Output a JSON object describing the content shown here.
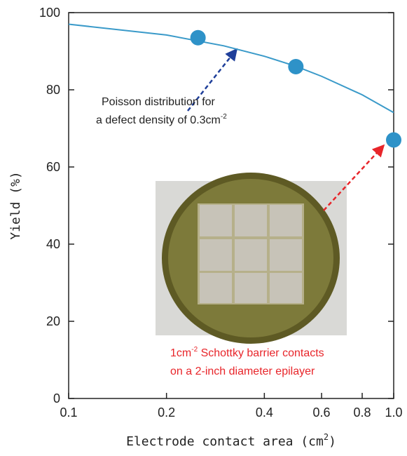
{
  "chart_data": {
    "type": "scatter",
    "y_label": "Yield (%)",
    "x_label": [
      "Electrode contact area (cm",
      "2",
      ")"
    ],
    "annotations": [
      "Poisson distribution for",
      "a defect density of 0.3cm",
      "-2",
      "1cm",
      "-2",
      " Schottky barrier contacts",
      "on a 2-inch diameter epilayer"
    ],
    "xscale": "log",
    "xlim": [
      0.1,
      1.0
    ],
    "xticks": [
      0.1,
      0.2,
      0.4,
      0.6,
      0.8,
      {
        "value": 1.0,
        "label": "1.0"
      }
    ],
    "ylim": [
      0,
      100
    ],
    "yticks": [
      0,
      20,
      40,
      60,
      80,
      100
    ],
    "line": {
      "color": "#3a9ac9",
      "x": [
        0.1,
        0.2,
        0.3,
        0.4,
        0.5,
        0.6,
        0.8,
        1.0
      ],
      "values": [
        97,
        94.2,
        91.4,
        88.7,
        86.1,
        83.5,
        78.7,
        74.1
      ]
    },
    "series": [
      {
        "color": "#2e92c8",
        "x": [
          0.25,
          0.5,
          1.0
        ],
        "values": [
          93.5,
          86,
          67
        ]
      }
    ]
  }
}
